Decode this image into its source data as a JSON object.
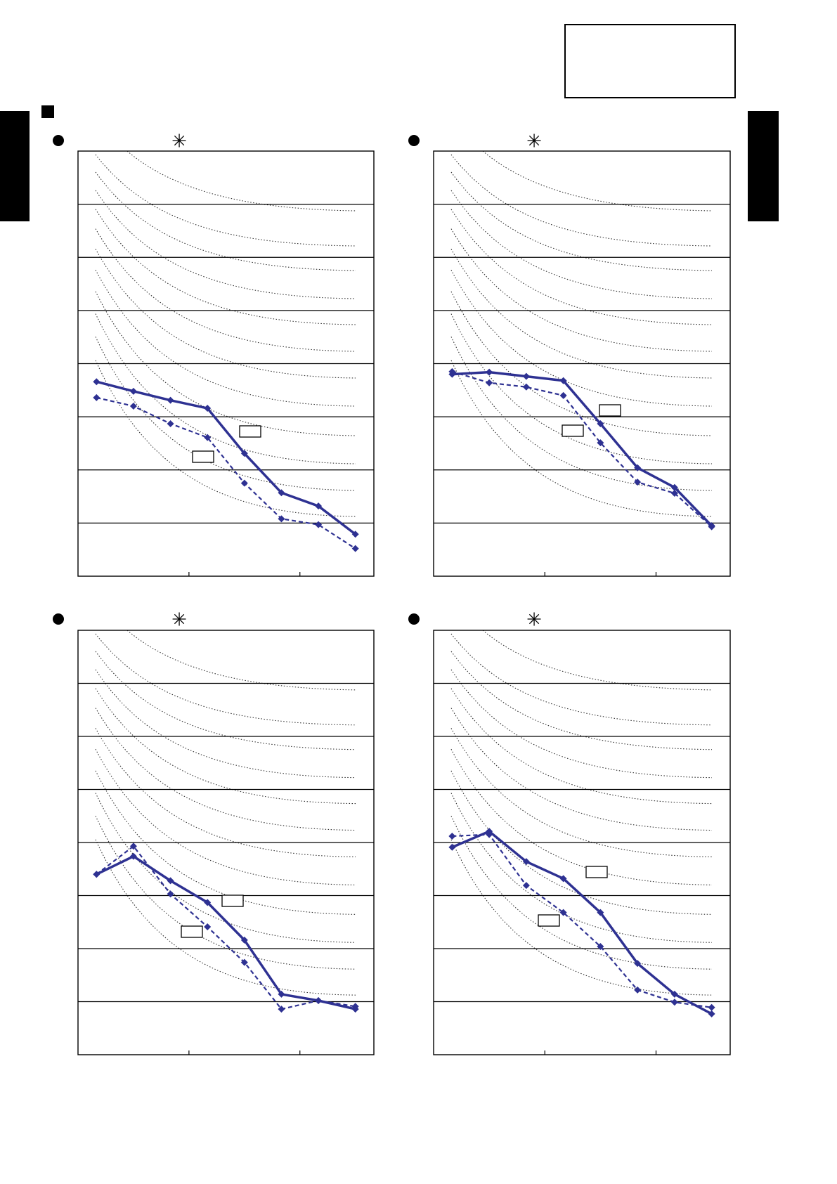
{
  "chart_data": [
    {
      "type": "line",
      "title": "✳",
      "x": [
        0.5,
        1.5,
        2.5,
        3.5,
        4.5,
        5.5,
        6.5,
        7.5
      ],
      "xlim": [
        0,
        8
      ],
      "xticks": [
        3,
        6
      ],
      "ylim": [
        0,
        8
      ],
      "yticks": [
        1,
        2,
        3,
        4,
        5,
        6,
        7
      ],
      "grid": true,
      "series": [
        {
          "color": "#2e3192",
          "linestyle": "solid",
          "values": [
            3.66,
            3.48,
            3.31,
            3.16,
            2.31,
            1.57,
            1.32,
            0.79
          ]
        },
        {
          "color": "#2e3192",
          "linestyle": "dashed",
          "values": [
            3.36,
            3.2,
            2.87,
            2.61,
            1.75,
            1.08,
            0.97,
            0.52
          ]
        }
      ]
    },
    {
      "type": "line",
      "title": "✳",
      "x": [
        0.5,
        1.5,
        2.5,
        3.5,
        4.5,
        5.5,
        6.5,
        7.5
      ],
      "xlim": [
        0,
        8
      ],
      "xticks": [
        3,
        6
      ],
      "ylim": [
        0,
        8
      ],
      "yticks": [
        1,
        2,
        3,
        4,
        5,
        6,
        7
      ],
      "grid": true,
      "series": [
        {
          "color": "#2e3192",
          "linestyle": "solid",
          "values": [
            3.8,
            3.84,
            3.76,
            3.68,
            2.87,
            2.04,
            1.67,
            0.95
          ]
        },
        {
          "color": "#2e3192",
          "linestyle": "dashed",
          "values": [
            3.85,
            3.64,
            3.56,
            3.4,
            2.51,
            1.77,
            1.56,
            0.93
          ]
        }
      ]
    },
    {
      "type": "line",
      "title": "✳",
      "x": [
        0.5,
        1.5,
        2.5,
        3.5,
        4.5,
        5.5,
        6.5,
        7.5
      ],
      "xlim": [
        0,
        8
      ],
      "xticks": [
        3,
        6
      ],
      "ylim": [
        0,
        8
      ],
      "yticks": [
        1,
        2,
        3,
        4,
        5,
        6,
        7
      ],
      "grid": true,
      "series": [
        {
          "color": "#2e3192",
          "linestyle": "solid",
          "values": [
            3.4,
            3.74,
            3.28,
            2.87,
            2.16,
            1.14,
            1.02,
            0.86
          ]
        },
        {
          "color": "#2e3192",
          "linestyle": "dashed",
          "values": [
            3.4,
            3.93,
            3.03,
            2.41,
            1.74,
            0.86,
            1.02,
            0.91
          ]
        }
      ]
    },
    {
      "type": "line",
      "title": "✳",
      "x": [
        0.5,
        1.5,
        2.5,
        3.5,
        4.5,
        5.5,
        6.5,
        7.5
      ],
      "xlim": [
        0,
        8
      ],
      "xticks": [
        3,
        6
      ],
      "ylim": [
        0,
        8
      ],
      "yticks": [
        1,
        2,
        3,
        4,
        5,
        6,
        7
      ],
      "grid": true,
      "series": [
        {
          "color": "#2e3192",
          "linestyle": "solid",
          "values": [
            3.91,
            4.21,
            3.64,
            3.32,
            2.68,
            1.72,
            1.14,
            0.77
          ]
        },
        {
          "color": "#2e3192",
          "linestyle": "dashed",
          "values": [
            4.12,
            4.15,
            3.19,
            2.68,
            2.04,
            1.22,
            0.99,
            0.89
          ]
        }
      ]
    }
  ]
}
